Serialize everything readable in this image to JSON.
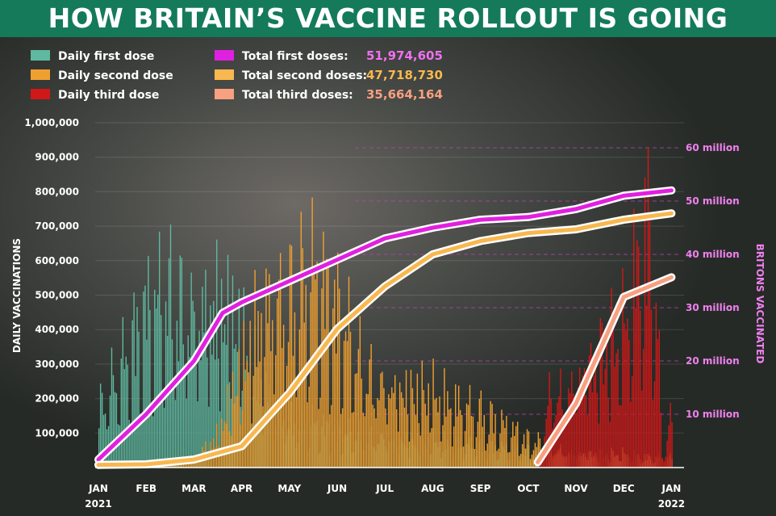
{
  "title": "HOW BRITAIN’S VACCINE ROLLOUT IS GOING",
  "legend": [
    {
      "label": "Daily first dose",
      "color": "#5fb8a0"
    },
    {
      "label": "Daily second dose",
      "color": "#f0a030"
    },
    {
      "label": "Daily third dose",
      "color": "#d01818"
    },
    {
      "label": "Total first doses:",
      "value": "51,974,605",
      "color": "#e020e0",
      "value_color": "#f070f0"
    },
    {
      "label": "Total second doses:",
      "value": "47,718,730",
      "color": "#f8b850",
      "value_color": "#f8b850"
    },
    {
      "label": "Total third doses:",
      "value": "35,664,164",
      "color": "#f8a080",
      "value_color": "#f8a080"
    }
  ],
  "chart_data": {
    "type": "bar",
    "x_ticks": [
      {
        "label": "JAN",
        "year": "2021"
      },
      {
        "label": "FEB"
      },
      {
        "label": "MAR"
      },
      {
        "label": "APR"
      },
      {
        "label": "MAY"
      },
      {
        "label": "JUN"
      },
      {
        "label": "JUL"
      },
      {
        "label": "AUG"
      },
      {
        "label": "SEP"
      },
      {
        "label": "OCT"
      },
      {
        "label": "NOV"
      },
      {
        "label": "DEC"
      },
      {
        "label": "JAN",
        "year": "2022"
      }
    ],
    "y_left": {
      "label": "DAILY VACCINATIONS",
      "ticks": [
        "100,000",
        "200,000",
        "300,000",
        "400,000",
        "500,000",
        "600,000",
        "700,000",
        "800,000",
        "900,000",
        "1,000,000"
      ],
      "range": [
        0,
        1000000
      ]
    },
    "y_right": {
      "label": "BRITONS VACCINATED",
      "ticks": [
        "10 million",
        "20 million",
        "30 million",
        "40 million",
        "50 million",
        "60 million"
      ],
      "range": [
        0,
        60000000
      ],
      "color": "#f080f0"
    },
    "daily_series": [
      {
        "name": "Daily first dose",
        "color": "#5fb8a0",
        "points": [
          [
            0,
            180000
          ],
          [
            0.5,
            300000
          ],
          [
            1,
            450000
          ],
          [
            1.5,
            500000
          ],
          [
            2,
            450000
          ],
          [
            2.5,
            500000
          ],
          [
            3,
            400000
          ],
          [
            3.3,
            300000
          ],
          [
            3.6,
            200000
          ],
          [
            4,
            150000
          ],
          [
            5,
            100000
          ],
          [
            6,
            90000
          ],
          [
            7,
            80000
          ],
          [
            8,
            60000
          ],
          [
            9,
            50000
          ],
          [
            10,
            45000
          ],
          [
            11,
            40000
          ],
          [
            11.5,
            30000
          ],
          [
            12,
            25000
          ]
        ]
      },
      {
        "name": "Daily second dose",
        "color": "#f0a030",
        "points": [
          [
            0,
            5000
          ],
          [
            1,
            10000
          ],
          [
            2,
            30000
          ],
          [
            2.5,
            100000
          ],
          [
            3,
            300000
          ],
          [
            3.3,
            450000
          ],
          [
            3.6,
            500000
          ],
          [
            4,
            500000
          ],
          [
            4.5,
            550000
          ],
          [
            5,
            450000
          ],
          [
            5.5,
            300000
          ],
          [
            6,
            250000
          ],
          [
            7,
            220000
          ],
          [
            8,
            160000
          ],
          [
            9,
            80000
          ],
          [
            10,
            45000
          ],
          [
            11,
            40000
          ],
          [
            11.5,
            30000
          ],
          [
            12,
            30000
          ]
        ]
      },
      {
        "name": "Daily third dose",
        "color": "#d01818",
        "points": [
          [
            9.2,
            0
          ],
          [
            9.4,
            200000
          ],
          [
            10,
            280000
          ],
          [
            10.5,
            350000
          ],
          [
            11,
            400000
          ],
          [
            11.3,
            600000
          ],
          [
            11.5,
            700000
          ],
          [
            11.7,
            400000
          ],
          [
            11.8,
            30000
          ],
          [
            12,
            150000
          ]
        ]
      }
    ],
    "total_series": [
      {
        "name": "Total first doses:",
        "color": "#e020e0",
        "points": [
          [
            0,
            1500000
          ],
          [
            1,
            10000000
          ],
          [
            2,
            20000000
          ],
          [
            2.6,
            29000000
          ],
          [
            3,
            31000000
          ],
          [
            4,
            35000000
          ],
          [
            5,
            39000000
          ],
          [
            6,
            43000000
          ],
          [
            7,
            45000000
          ],
          [
            8,
            46500000
          ],
          [
            9,
            47000000
          ],
          [
            10,
            48500000
          ],
          [
            11,
            51000000
          ],
          [
            12,
            52000000
          ]
        ]
      },
      {
        "name": "Total second doses:",
        "color": "#f8b850",
        "points": [
          [
            0,
            500000
          ],
          [
            1,
            600000
          ],
          [
            2,
            1500000
          ],
          [
            3,
            4000000
          ],
          [
            4,
            14000000
          ],
          [
            5,
            26000000
          ],
          [
            6,
            34000000
          ],
          [
            7,
            40000000
          ],
          [
            8,
            42500000
          ],
          [
            9,
            44000000
          ],
          [
            10,
            44700000
          ],
          [
            11,
            46500000
          ],
          [
            12,
            47700000
          ]
        ]
      },
      {
        "name": "Total third doses:",
        "color": "#f8a080",
        "points": [
          [
            9.2,
            1000000
          ],
          [
            10,
            12000000
          ],
          [
            11,
            32000000
          ],
          [
            12,
            35700000
          ]
        ]
      }
    ],
    "grid": true
  }
}
